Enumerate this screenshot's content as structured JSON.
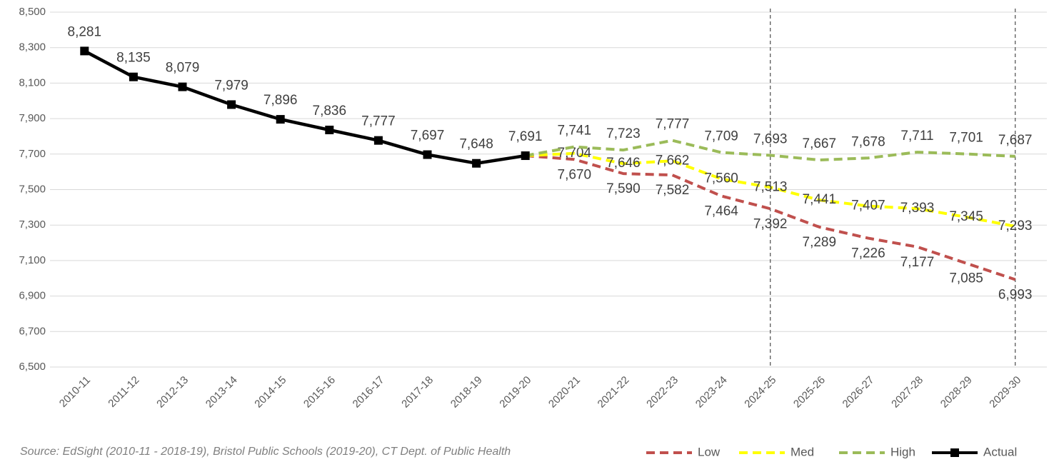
{
  "chart_data": {
    "type": "line",
    "categories": [
      "2010-11",
      "2011-12",
      "2012-13",
      "2013-14",
      "2014-15",
      "2015-16",
      "2016-17",
      "2017-18",
      "2018-19",
      "2019-20",
      "2020-21",
      "2021-22",
      "2022-23",
      "2023-24",
      "2024-25",
      "2025-26",
      "2026-27",
      "2027-28",
      "2028-29",
      "2029-30"
    ],
    "series": [
      {
        "name": "Low",
        "color": "#c0504d",
        "dashed": true,
        "values": [
          null,
          null,
          null,
          null,
          null,
          null,
          null,
          null,
          null,
          7691,
          7670,
          7590,
          7582,
          7464,
          7392,
          7289,
          7226,
          7177,
          7085,
          6993
        ],
        "value_labels": [
          null,
          null,
          null,
          null,
          null,
          null,
          null,
          null,
          null,
          null,
          "7,670",
          "7,590",
          "7,582",
          "7,464",
          "7,392",
          "7,289",
          "7,226",
          "7,177",
          "7,085",
          "6,993"
        ]
      },
      {
        "name": "Med",
        "color": "#ffff00",
        "dashed": true,
        "values": [
          null,
          null,
          null,
          null,
          null,
          null,
          null,
          null,
          null,
          7691,
          7704,
          7646,
          7662,
          7560,
          7513,
          7441,
          7407,
          7393,
          7345,
          7293
        ],
        "value_labels": [
          null,
          null,
          null,
          null,
          null,
          null,
          null,
          null,
          null,
          null,
          "7,704",
          "7,646",
          "7,662",
          "7,560",
          "7,513",
          "7,441",
          "7,407",
          "7,393",
          "7,345",
          "7,293"
        ]
      },
      {
        "name": "High",
        "color": "#9bbb59",
        "dashed": true,
        "values": [
          null,
          null,
          null,
          null,
          null,
          null,
          null,
          null,
          null,
          7691,
          7741,
          7723,
          7777,
          7709,
          7693,
          7667,
          7678,
          7711,
          7701,
          7687
        ],
        "value_labels": [
          null,
          null,
          null,
          null,
          null,
          null,
          null,
          null,
          null,
          null,
          "7,741",
          "7,723",
          "7,777",
          "7,709",
          "7,693",
          "7,667",
          "7,678",
          "7,711",
          "7,701",
          "7,687"
        ]
      },
      {
        "name": "Actual",
        "color": "#000000",
        "dashed": false,
        "markers": true,
        "values": [
          8281,
          8135,
          8079,
          7979,
          7896,
          7836,
          7777,
          7697,
          7648,
          7691,
          null,
          null,
          null,
          null,
          null,
          null,
          null,
          null,
          null,
          null
        ],
        "value_labels": [
          "8,281",
          "8,135",
          "8,079",
          "7,979",
          "7,896",
          "7,836",
          "7,777",
          "7,697",
          "7,648",
          "7,691",
          null,
          null,
          null,
          null,
          null,
          null,
          null,
          null,
          null,
          null
        ]
      }
    ],
    "ylim": [
      6500,
      8500
    ],
    "yticks": [
      {
        "value": 6500,
        "label": "6,500"
      },
      {
        "value": 6700,
        "label": "6,700"
      },
      {
        "value": 6900,
        "label": "6,900"
      },
      {
        "value": 7100,
        "label": "7,100"
      },
      {
        "value": 7300,
        "label": "7,300"
      },
      {
        "value": 7500,
        "label": "7,500"
      },
      {
        "value": 7700,
        "label": "7,700"
      },
      {
        "value": 7900,
        "label": "7,900"
      },
      {
        "value": 8100,
        "label": "8,100"
      },
      {
        "value": 8300,
        "label": "8,300"
      },
      {
        "value": 8500,
        "label": "8,500"
      }
    ],
    "grid": true,
    "reference_lines": [
      "2024-25",
      "2029-30"
    ],
    "note": "Source: EdSight (2010-11 - 2018-19), Bristol Public Schools (2019-20), CT Dept. of Public Health",
    "legend": "bottom-right"
  }
}
